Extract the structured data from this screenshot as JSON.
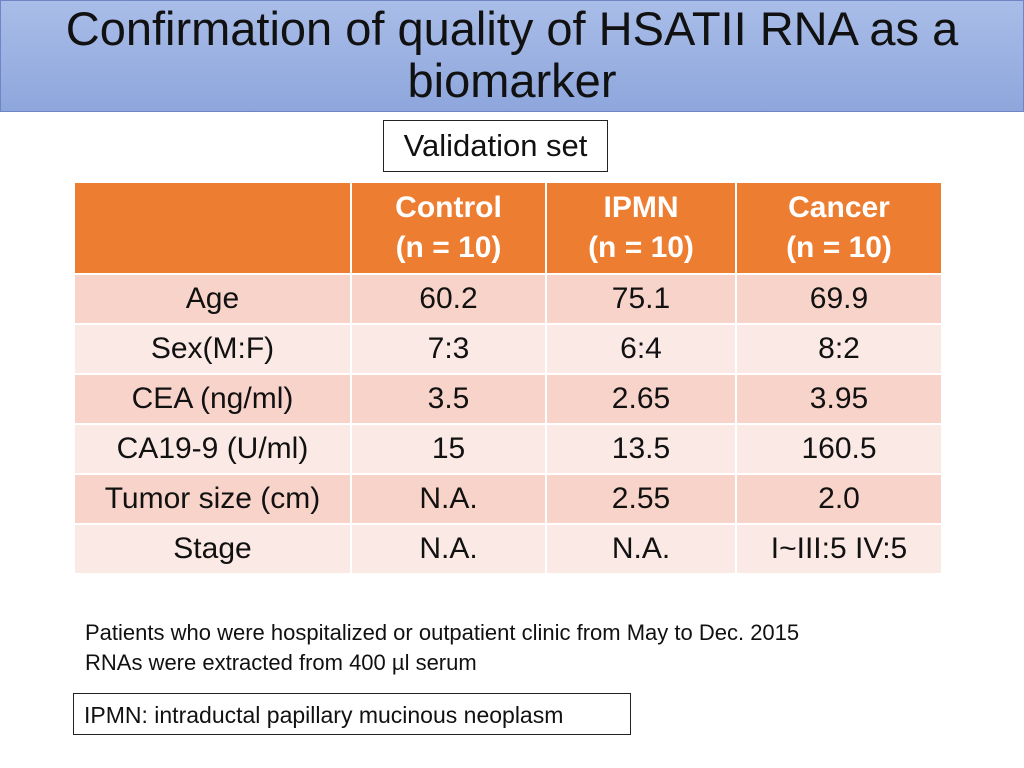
{
  "slide": {
    "title": "Confirmation of quality of HSATII RNA as a biomarker",
    "subtitle_box": "Validation set"
  },
  "table": {
    "columns": [
      {
        "name": "Control",
        "n": "(n = 10)"
      },
      {
        "name": "IPMN",
        "n": "(n = 10)"
      },
      {
        "name": "Cancer",
        "n": "(n = 10)"
      }
    ],
    "rows": [
      {
        "label": "Age",
        "values": [
          "60.2",
          "75.1",
          "69.9"
        ]
      },
      {
        "label": "Sex(M:F)",
        "values": [
          "7:3",
          "6:4",
          "8:2"
        ]
      },
      {
        "label": "CEA (ng/ml)",
        "values": [
          "3.5",
          "2.65",
          "3.95"
        ]
      },
      {
        "label": "CA19-9 (U/ml)",
        "values": [
          "15",
          "13.5",
          "160.5"
        ]
      },
      {
        "label": "Tumor size (cm)",
        "values": [
          "N.A.",
          "2.55",
          "2.0"
        ]
      },
      {
        "label": "Stage",
        "values": [
          "N.A.",
          "N.A.",
          "I~III:5 IV:5"
        ]
      }
    ]
  },
  "notes": {
    "line1": "Patients who were hospitalized or outpatient clinic from May to Dec. 2015",
    "line2": "RNAs were extracted from 400 µl serum"
  },
  "footnote": "IPMN: intraductal papillary mucinous neoplasm",
  "colors": {
    "header_orange": "#ed7d31",
    "row_dark": "#f8d3ca",
    "row_light": "#fbe9e5",
    "title_blue": "#9bb1e2"
  }
}
